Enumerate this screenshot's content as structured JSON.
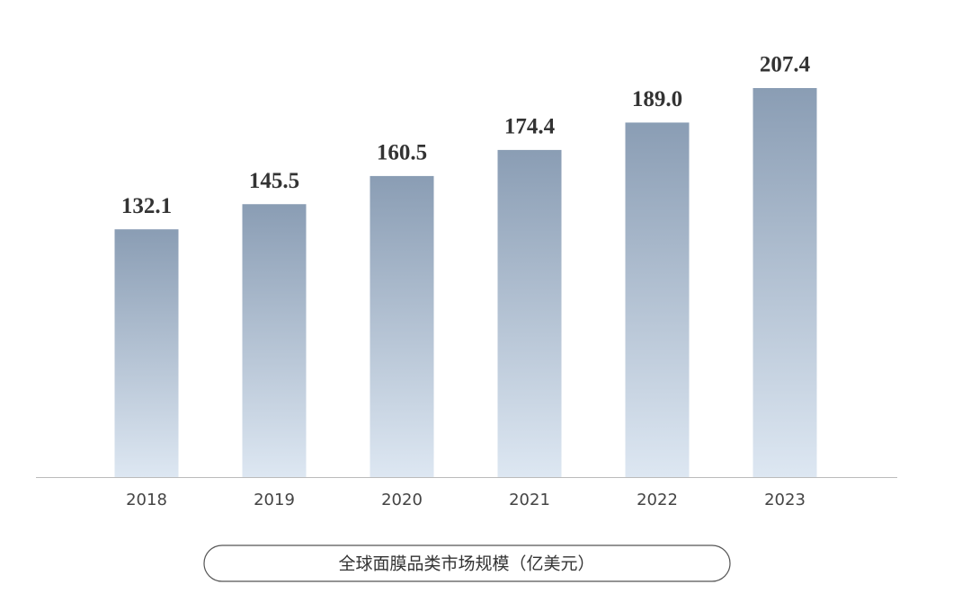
{
  "chart_data": {
    "type": "bar",
    "title": "全球面膜品类市场规模（亿美元）",
    "categories": [
      "2018",
      "2019",
      "2020",
      "2021",
      "2022",
      "2023"
    ],
    "values": [
      132.1,
      145.5,
      160.5,
      174.4,
      189.0,
      207.4
    ],
    "value_labels": [
      "132.1",
      "145.5",
      "160.5",
      "174.4",
      "189.0",
      "207.4"
    ],
    "color": "#8a9db4"
  }
}
